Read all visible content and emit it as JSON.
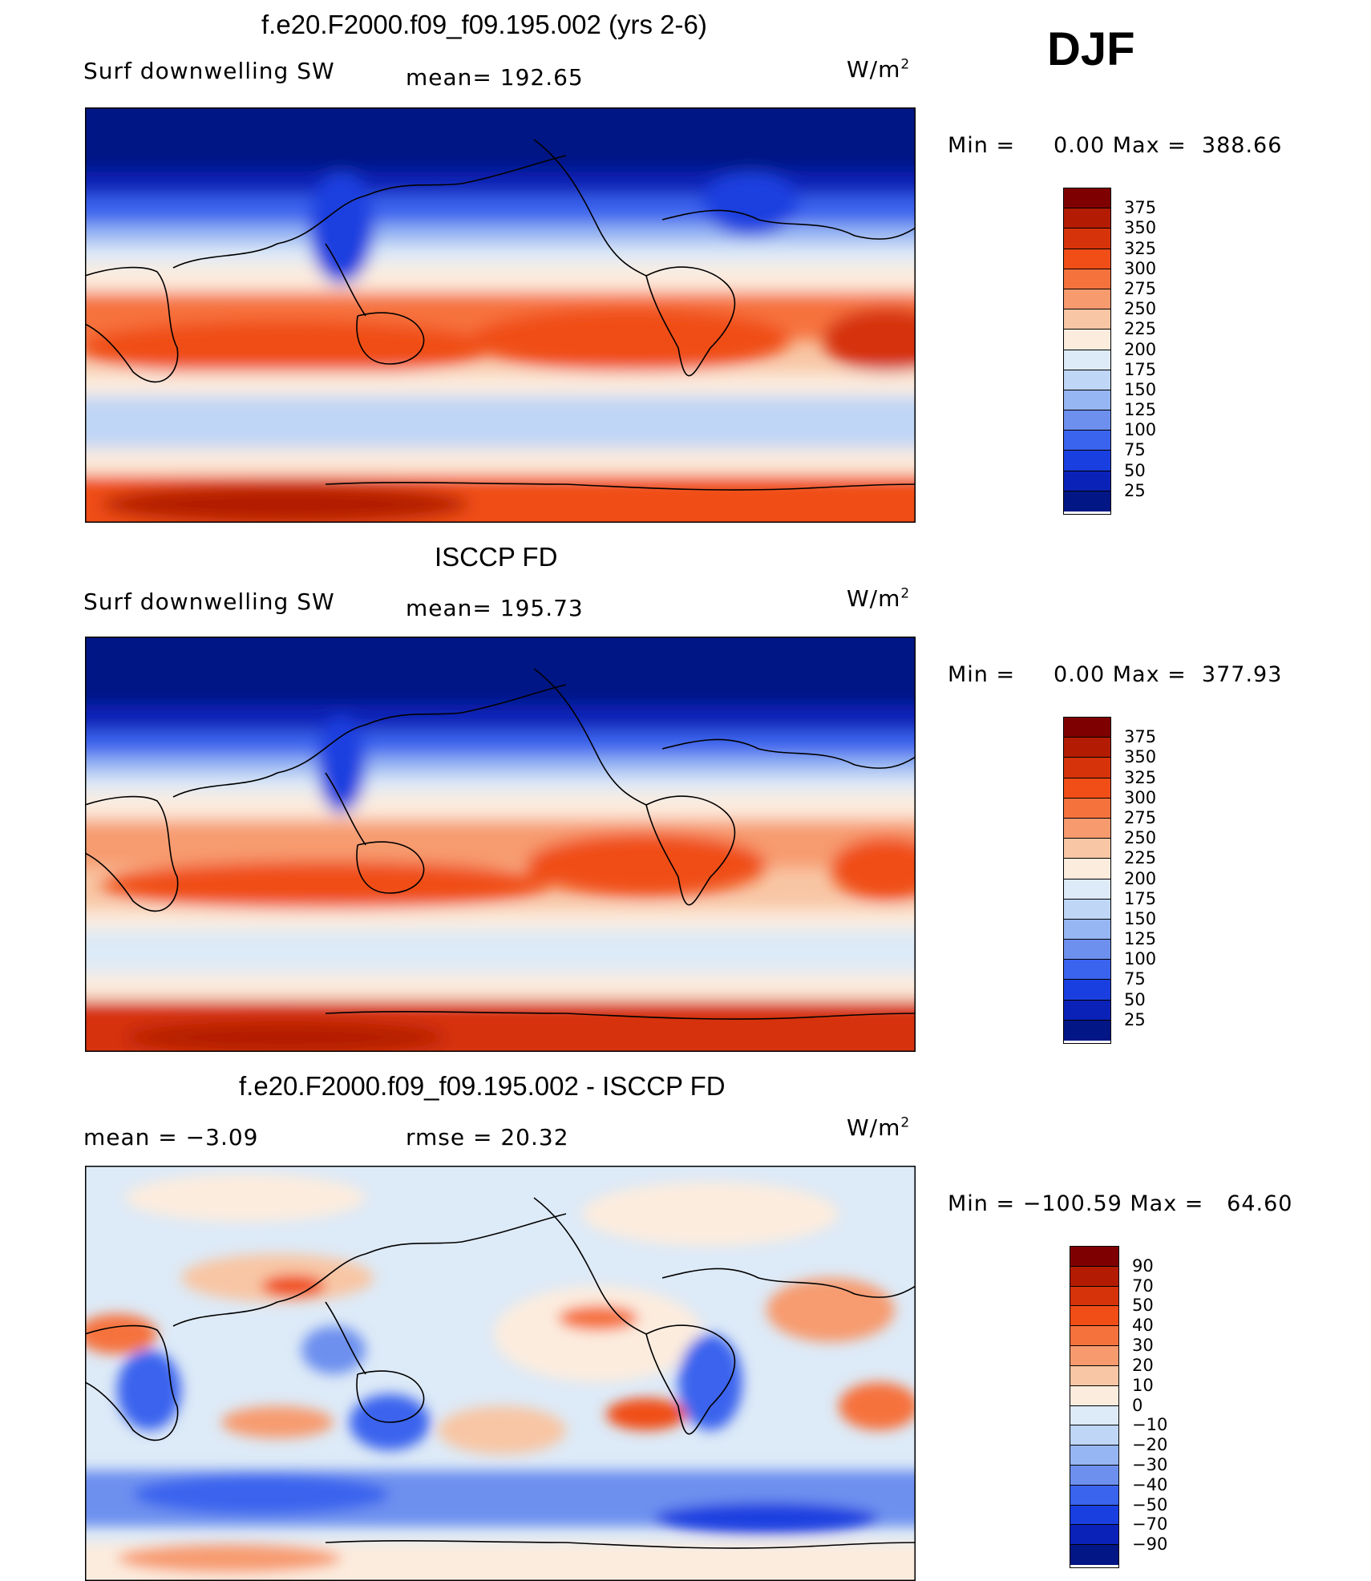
{
  "season": "DJF",
  "units_label": "W/m",
  "units_exp": "2",
  "panels": [
    {
      "title": "f.e20.F2000.f09_f09.195.002 (yrs 2-6)",
      "left_label": "Surf downwelling SW",
      "center_label": "mean= 192.65",
      "minmax": "Min =     0.00 Max =  388.66",
      "colorbar": {
        "ticks": [
          "375",
          "350",
          "325",
          "300",
          "275",
          "250",
          "225",
          "200",
          "175",
          "150",
          "125",
          "100",
          "75",
          "50",
          "25"
        ],
        "colors": [
          "#7f0000",
          "#b31c02",
          "#d6330a",
          "#f04d17",
          "#f6723d",
          "#f79b6f",
          "#f8c6a4",
          "#fcecde",
          "#ddeaf7",
          "#bfd6f6",
          "#96b5f3",
          "#6d90ef",
          "#3a63ee",
          "#1a3fe0",
          "#0a22b8",
          "#031685"
        ]
      }
    },
    {
      "title": "ISCCP FD",
      "left_label": "Surf downwelling SW",
      "center_label": "mean= 195.73",
      "minmax": "Min =     0.00 Max =  377.93",
      "colorbar": {
        "ticks": [
          "375",
          "350",
          "325",
          "300",
          "275",
          "250",
          "225",
          "200",
          "175",
          "150",
          "125",
          "100",
          "75",
          "50",
          "25"
        ],
        "colors": [
          "#7f0000",
          "#b31c02",
          "#d6330a",
          "#f04d17",
          "#f6723d",
          "#f79b6f",
          "#f8c6a4",
          "#fcecde",
          "#ddeaf7",
          "#bfd6f6",
          "#96b5f3",
          "#6d90ef",
          "#3a63ee",
          "#1a3fe0",
          "#0a22b8",
          "#031685"
        ]
      }
    },
    {
      "title": "f.e20.F2000.f09_f09.195.002 - ISCCP FD",
      "left_label": "mean =   −3.09",
      "center_label": "rmse =   20.32",
      "minmax": "Min = −100.59 Max =   64.60",
      "colorbar": {
        "ticks": [
          "90",
          "70",
          "50",
          "40",
          "30",
          "20",
          "10",
          "0",
          "−10",
          "−20",
          "−30",
          "−40",
          "−50",
          "−70",
          "−90"
        ],
        "colors": [
          "#7f0000",
          "#b31c02",
          "#d6330a",
          "#f04d17",
          "#f6723d",
          "#f79b6f",
          "#f8c6a4",
          "#fcecde",
          "#ddeaf7",
          "#bfd6f6",
          "#96b5f3",
          "#6d90ef",
          "#3a63ee",
          "#1a3fe0",
          "#0a22b8",
          "#031685"
        ]
      }
    }
  ],
  "palette": {
    "deep_blue": "#031685",
    "mid_blue": "#1a3fe0",
    "light_blue": "#bfd6f6",
    "pale": "#fcecde",
    "peach": "#f8c6a4",
    "orange": "#f04d17",
    "dark_red": "#b31c02",
    "coast": "#000000"
  }
}
